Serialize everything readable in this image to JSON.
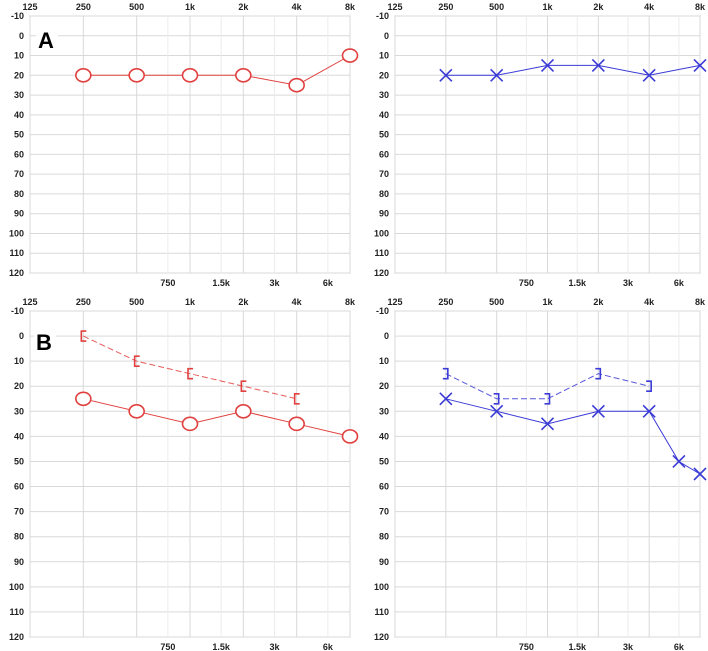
{
  "figure": {
    "panel_labels": [
      "A",
      "B"
    ]
  },
  "colors": {
    "right_ear": "#e0413f",
    "left_ear": "#3a3ad6",
    "grid": "#d9d9d9",
    "frame": "#b5b5b5",
    "text": "#222222"
  },
  "chart_data": [
    {
      "type": "line",
      "panel": "A",
      "ear": "right",
      "x_top_ticks": [
        "125",
        "250",
        "500",
        "1k",
        "2k",
        "4k",
        "8k"
      ],
      "x_bottom_ticks": [
        "750",
        "1.5k",
        "3k",
        "6k"
      ],
      "y_ticks": [
        "-10",
        "0",
        "10",
        "20",
        "30",
        "40",
        "50",
        "60",
        "70",
        "80",
        "90",
        "100",
        "110",
        "120"
      ],
      "ylim": [
        -10,
        120
      ],
      "y_inverted": true,
      "x_scale": "log",
      "grid": true,
      "series": [
        {
          "marker": "circle",
          "style": "solid",
          "color": "#e0413f",
          "points": [
            {
              "x": 250,
              "y": 20
            },
            {
              "x": 500,
              "y": 20
            },
            {
              "x": 1000,
              "y": 20
            },
            {
              "x": 2000,
              "y": 20
            },
            {
              "x": 4000,
              "y": 25
            },
            {
              "x": 8000,
              "y": 10
            }
          ]
        }
      ]
    },
    {
      "type": "line",
      "panel": "A",
      "ear": "left",
      "x_top_ticks": [
        "125",
        "250",
        "500",
        "1k",
        "2k",
        "4k",
        "8k"
      ],
      "x_bottom_ticks": [
        "750",
        "1.5k",
        "3k",
        "6k"
      ],
      "y_ticks": [
        "-10",
        "0",
        "10",
        "20",
        "30",
        "40",
        "50",
        "60",
        "70",
        "80",
        "90",
        "100",
        "110",
        "120"
      ],
      "ylim": [
        -10,
        120
      ],
      "y_inverted": true,
      "x_scale": "log",
      "grid": true,
      "series": [
        {
          "marker": "x",
          "style": "solid",
          "color": "#3a3ad6",
          "points": [
            {
              "x": 250,
              "y": 20
            },
            {
              "x": 500,
              "y": 20
            },
            {
              "x": 1000,
              "y": 15
            },
            {
              "x": 2000,
              "y": 15
            },
            {
              "x": 4000,
              "y": 20
            },
            {
              "x": 8000,
              "y": 15
            }
          ]
        }
      ]
    },
    {
      "type": "line",
      "panel": "B",
      "ear": "right",
      "x_top_ticks": [
        "125",
        "250",
        "500",
        "1k",
        "2k",
        "4k",
        "8k"
      ],
      "x_bottom_ticks": [
        "750",
        "1.5k",
        "3k",
        "6k"
      ],
      "y_ticks": [
        "-10",
        "0",
        "10",
        "20",
        "30",
        "40",
        "50",
        "60",
        "70",
        "80",
        "90",
        "100",
        "110",
        "120"
      ],
      "ylim": [
        -10,
        120
      ],
      "y_inverted": true,
      "x_scale": "log",
      "grid": true,
      "series": [
        {
          "marker": "bracket-left",
          "style": "dashed",
          "color": "#e0413f",
          "points": [
            {
              "x": 250,
              "y": 0
            },
            {
              "x": 500,
              "y": 10
            },
            {
              "x": 1000,
              "y": 15
            },
            {
              "x": 2000,
              "y": 20
            },
            {
              "x": 4000,
              "y": 25
            }
          ]
        },
        {
          "marker": "circle",
          "style": "solid",
          "color": "#e0413f",
          "points": [
            {
              "x": 250,
              "y": 25
            },
            {
              "x": 500,
              "y": 30
            },
            {
              "x": 1000,
              "y": 35
            },
            {
              "x": 2000,
              "y": 30
            },
            {
              "x": 4000,
              "y": 35
            },
            {
              "x": 8000,
              "y": 40
            }
          ]
        }
      ]
    },
    {
      "type": "line",
      "panel": "B",
      "ear": "left",
      "x_top_ticks": [
        "125",
        "250",
        "500",
        "1k",
        "2k",
        "4k",
        "8k"
      ],
      "x_bottom_ticks": [
        "750",
        "1.5k",
        "3k",
        "6k"
      ],
      "y_ticks": [
        "-10",
        "0",
        "10",
        "20",
        "30",
        "40",
        "50",
        "60",
        "70",
        "80",
        "90",
        "100",
        "110",
        "120"
      ],
      "ylim": [
        -10,
        120
      ],
      "y_inverted": true,
      "x_scale": "log",
      "grid": true,
      "series": [
        {
          "marker": "bracket-right",
          "style": "dashed",
          "color": "#3a3ad6",
          "points": [
            {
              "x": 250,
              "y": 15
            },
            {
              "x": 500,
              "y": 25
            },
            {
              "x": 1000,
              "y": 25
            },
            {
              "x": 2000,
              "y": 15
            },
            {
              "x": 4000,
              "y": 20
            }
          ]
        },
        {
          "marker": "x",
          "style": "solid",
          "color": "#3a3ad6",
          "points": [
            {
              "x": 250,
              "y": 25
            },
            {
              "x": 500,
              "y": 30
            },
            {
              "x": 1000,
              "y": 35
            },
            {
              "x": 2000,
              "y": 30
            },
            {
              "x": 4000,
              "y": 30
            },
            {
              "x": 6000,
              "y": 50
            },
            {
              "x": 8000,
              "y": 55
            }
          ]
        }
      ]
    }
  ]
}
